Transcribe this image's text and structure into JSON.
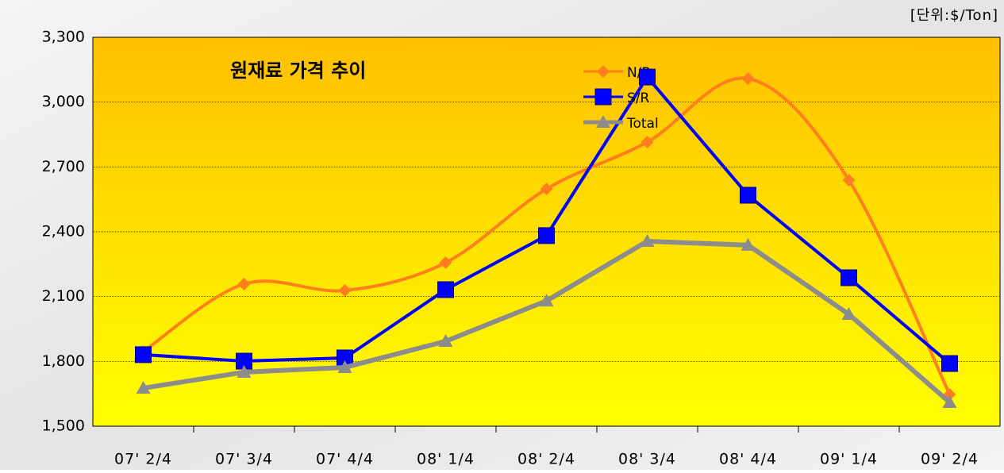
{
  "chart_data": {
    "type": "line",
    "title": "원재료 가격 추이",
    "unit_label": "[단위:$/Ton]",
    "categories": [
      "07' 2/4",
      "07' 3/4",
      "07' 4/4",
      "08' 1/4",
      "08' 2/4",
      "08' 3/4",
      "08' 4/4",
      "09' 1/4",
      "09' 2/4"
    ],
    "series": [
      {
        "name": "N/R",
        "color": "#ff7f1e",
        "marker": "diamond",
        "smooth": true,
        "values": [
          1845,
          2158,
          2128,
          2257,
          2598,
          2815,
          3109,
          2639,
          1647
        ]
      },
      {
        "name": "S/R",
        "color": "#0000ff",
        "marker": "square",
        "smooth": false,
        "values": [
          1831,
          1801,
          1816,
          2132,
          2382,
          3116,
          2569,
          2187,
          1790
        ]
      },
      {
        "name": "Total",
        "color": "#8c8c8c",
        "marker": "triangle",
        "smooth": false,
        "values": [
          1676,
          1750,
          1772,
          1893,
          2080,
          2356,
          2338,
          2018,
          1610
        ]
      }
    ],
    "ylim": [
      1500,
      3300
    ],
    "yticks": [
      {
        "value": 1500,
        "label": "1,500"
      },
      {
        "value": 1800,
        "label": "1,800"
      },
      {
        "value": 2100,
        "label": "2,100"
      },
      {
        "value": 2400,
        "label": "2,400"
      },
      {
        "value": 2700,
        "label": "2,700"
      },
      {
        "value": 3000,
        "label": "3,000"
      },
      {
        "value": 3300,
        "label": "3,300"
      }
    ],
    "grid": true
  }
}
